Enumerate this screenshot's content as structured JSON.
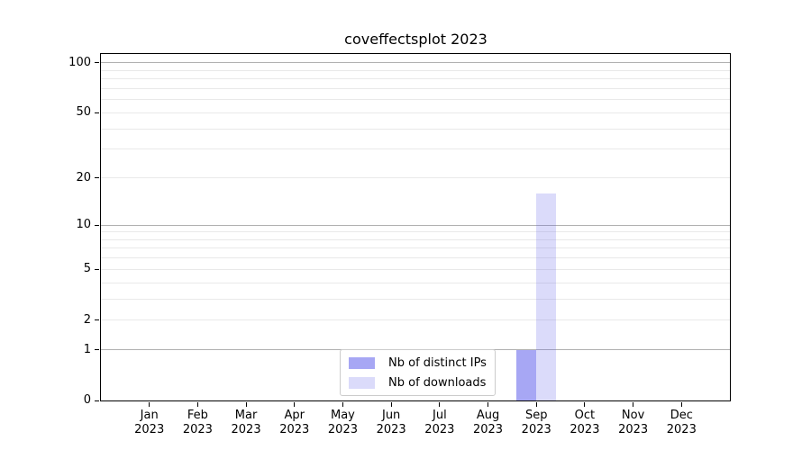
{
  "chart_data": {
    "type": "bar",
    "title": "coveffectsplot 2023",
    "xlabel": "",
    "ylabel": "",
    "categories": [
      {
        "month": "Jan",
        "year": "2023"
      },
      {
        "month": "Feb",
        "year": "2023"
      },
      {
        "month": "Mar",
        "year": "2023"
      },
      {
        "month": "Apr",
        "year": "2023"
      },
      {
        "month": "May",
        "year": "2023"
      },
      {
        "month": "Jun",
        "year": "2023"
      },
      {
        "month": "Jul",
        "year": "2023"
      },
      {
        "month": "Aug",
        "year": "2023"
      },
      {
        "month": "Sep",
        "year": "2023"
      },
      {
        "month": "Oct",
        "year": "2023"
      },
      {
        "month": "Nov",
        "year": "2023"
      },
      {
        "month": "Dec",
        "year": "2023"
      }
    ],
    "series": [
      {
        "name": "Nb of distinct IPs",
        "color": "rgba(100,100,235,0.57)",
        "color_hex_on_white": "#a6a6f2",
        "values": [
          0,
          0,
          0,
          0,
          0,
          0,
          0,
          0,
          1,
          0,
          0,
          0
        ]
      },
      {
        "name": "Nb of downloads",
        "color": "rgba(100,100,235,0.23)",
        "color_hex_on_white": "#dcdcf8",
        "values": [
          0,
          0,
          0,
          0,
          0,
          0,
          0,
          0,
          16,
          0,
          0,
          0
        ]
      }
    ],
    "yscale": "log1p",
    "ylim": [
      0,
      113
    ],
    "yticks_labeled": [
      0,
      1,
      2,
      5,
      10,
      20,
      50,
      100
    ],
    "yticks_major_grid": [
      1,
      10,
      100
    ],
    "yticks_minor_grid": [
      3,
      4,
      6,
      7,
      8,
      9,
      30,
      40,
      60,
      70,
      80,
      90
    ],
    "grid": true,
    "legend_position": "bottom-center-inside",
    "colors": {
      "major_grid": "#b0b0b0",
      "minor_grid": "#e9e9e9",
      "axis": "#000000",
      "text": "#000000",
      "background": "#ffffff",
      "legend_border": "#cccccc"
    }
  }
}
